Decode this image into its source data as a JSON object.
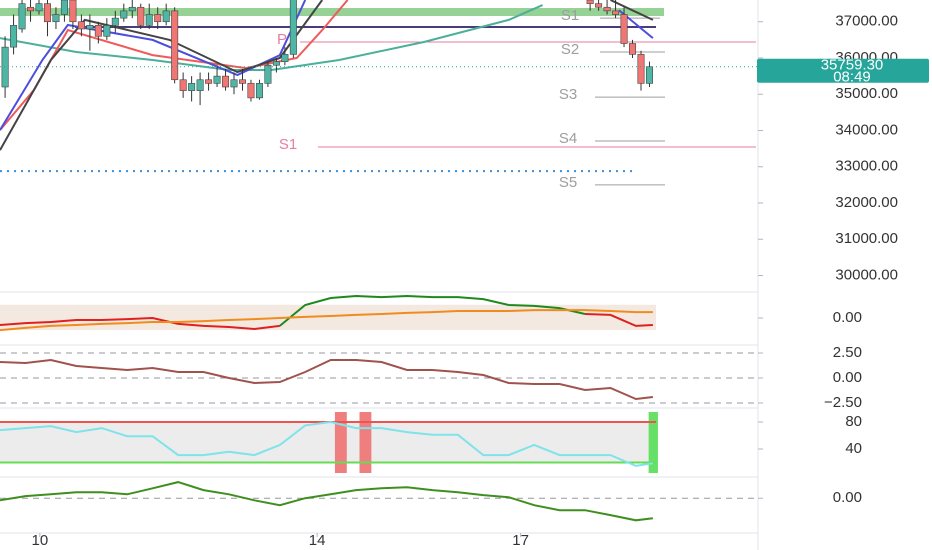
{
  "chart_data": [
    {
      "type": "candlestick",
      "xlim": [
        0,
        89.4
      ],
      "ylim": [
        29600,
        37600
      ],
      "xticks": [
        {
          "value": 4.7,
          "label": "10"
        },
        {
          "value": 37.4,
          "label": "14"
        },
        {
          "value": 61.4,
          "label": "17"
        }
      ],
      "yticks": [
        {
          "value": 37000,
          "label": "37000.00"
        },
        {
          "value": 36000,
          "label": "36000.00"
        },
        {
          "value": 35000,
          "label": "35000.00"
        },
        {
          "value": 34000,
          "label": "34000.00"
        },
        {
          "value": 33000,
          "label": "33000.00"
        },
        {
          "value": 32000,
          "label": "32000.00"
        },
        {
          "value": 31000,
          "label": "31000.00"
        },
        {
          "value": 30000,
          "label": "30000.00"
        }
      ],
      "up_color": "#4db6a4",
      "down_color": "#ef7673",
      "x": [
        0.6,
        1.6,
        2.6,
        3.6,
        4.6,
        5.6,
        6.6,
        7.6,
        8.6,
        9.6,
        10.6,
        11.6,
        12.6,
        13.6,
        14.6,
        15.6,
        16.6,
        17.6,
        18.6,
        19.6,
        20.6,
        21.6,
        22.6,
        23.6,
        24.6,
        25.6,
        26.6,
        27.6,
        28.6,
        29.6,
        30.6,
        31.6,
        32.6,
        33.6,
        34.6,
        69.6,
        70.6,
        71.6,
        72.6,
        73.6,
        74.6,
        75.6,
        76.6
      ],
      "open": [
        35200,
        36300,
        36800,
        37400,
        37300,
        37500,
        37000,
        37200,
        37600,
        37000,
        36800,
        36900,
        36600,
        36900,
        37100,
        37300,
        37400,
        36900,
        37200,
        37000,
        37300,
        35400,
        35100,
        35100,
        35400,
        35300,
        35500,
        35200,
        35400,
        35300,
        34900,
        35300,
        35800,
        35900,
        36100,
        37600,
        37500,
        37400,
        37300,
        37200,
        36400,
        36100,
        35300
      ],
      "high": [
        36600,
        37200,
        37700,
        37700,
        37700,
        37600,
        37400,
        37800,
        37800,
        37200,
        37200,
        37000,
        37100,
        37300,
        37500,
        37600,
        37500,
        37500,
        37400,
        37500,
        37400,
        35600,
        35500,
        35600,
        35600,
        35800,
        35700,
        35600,
        35700,
        35400,
        35400,
        35900,
        36000,
        36300,
        37800,
        37700,
        37700,
        37700,
        37600,
        37400,
        36500,
        36200,
        35900
      ],
      "low": [
        34900,
        36100,
        36700,
        37000,
        37200,
        36600,
        36800,
        37000,
        36800,
        36600,
        36200,
        36400,
        36500,
        36700,
        37000,
        37100,
        36800,
        36800,
        36800,
        36900,
        35300,
        34900,
        34800,
        34700,
        35100,
        35200,
        35100,
        35000,
        35100,
        34800,
        34850,
        35200,
        35600,
        35800,
        36000,
        37300,
        37300,
        37200,
        37100,
        36300,
        36000,
        35100,
        35200
      ],
      "close": [
        36300,
        36900,
        37500,
        37300,
        37500,
        37000,
        37200,
        37600,
        37000,
        36800,
        36900,
        36600,
        36900,
        37100,
        37300,
        37400,
        36900,
        37200,
        37000,
        37300,
        35400,
        35100,
        35300,
        35400,
        35300,
        35500,
        35200,
        35400,
        35300,
        34900,
        35300,
        35800,
        35900,
        36100,
        37700,
        37500,
        37400,
        37300,
        37200,
        36400,
        36100,
        35300,
        35759.3
      ],
      "lines": [
        {
          "color": "#4caf9a",
          "x": [
            0,
            9,
            18,
            27,
            32,
            40,
            50,
            60,
            64
          ],
          "values": [
            36550,
            36165,
            35945,
            35670,
            35670,
            35945,
            36440,
            37050,
            37460
          ]
        },
        {
          "color": "#f05a5a",
          "x": [
            0,
            4,
            8,
            18,
            29,
            35,
            38,
            41
          ],
          "values": [
            34010,
            35117,
            36770,
            36080,
            35720,
            36000,
            36770,
            37600
          ]
        },
        {
          "color": "#4b4fdc",
          "x": [
            0,
            5,
            8,
            18,
            28,
            33,
            36,
            null,
            73,
            77
          ],
          "values": [
            34010,
            35945,
            36910,
            36500,
            35530,
            36080,
            37600,
            null,
            37320,
            36550
          ]
        },
        {
          "color": "#444444",
          "x": [
            0,
            6,
            10,
            20,
            28,
            33,
            38,
            null,
            72,
            77
          ],
          "values": [
            33460,
            35945,
            37050,
            36500,
            35610,
            36000,
            37600,
            null,
            37600,
            37050
          ]
        }
      ],
      "hlines": [
        {
          "value": 37270,
          "color": "#7cc67c",
          "style": "band"
        },
        {
          "value": 36855,
          "color": "#4a3c7a",
          "style": "solid"
        },
        {
          "value": 32880,
          "color": "#3d8fd6",
          "style": "dotted"
        }
      ],
      "levels": [
        {
          "label": "S1",
          "value": 37100,
          "color": "#9e9e9e"
        },
        {
          "label": "P",
          "value": 36440,
          "color": "#e57fa0"
        },
        {
          "label": "S2",
          "value": 36165,
          "color": "#9e9e9e"
        },
        {
          "label": "S3",
          "value": 34920,
          "color": "#9e9e9e"
        },
        {
          "label": "S4",
          "value": 33710,
          "color": "#9e9e9e"
        },
        {
          "label": "S1",
          "value": 33545,
          "color": "#e57fa0"
        },
        {
          "label": "S5",
          "value": 32500,
          "color": "#9e9e9e"
        }
      ],
      "last_price": {
        "value": 35759.3,
        "label": "35759.30"
      },
      "countdown": "08:49",
      "badge_color": "#26a69a"
    },
    {
      "type": "line",
      "ylim": [
        -1,
        1
      ],
      "yticks": [
        {
          "value": 0,
          "label": "0.00"
        }
      ],
      "band": [
        -0.55,
        0.6
      ],
      "band_color": "#f3e9e0",
      "x": [
        0,
        3,
        6,
        9,
        12,
        15,
        18,
        21,
        24,
        27,
        30,
        33,
        36,
        39,
        42,
        45,
        48,
        51,
        54,
        57,
        60,
        63,
        66,
        69,
        72,
        75,
        77
      ],
      "series": [
        {
          "color": "#e02020",
          "values": [
            -0.32,
            -0.23,
            -0.18,
            -0.09,
            -0.09,
            -0.05,
            0,
            -0.27,
            -0.36,
            -0.41,
            -0.5,
            -0.36,
            null,
            null,
            null,
            null,
            null,
            null,
            null,
            null,
            null,
            null,
            null,
            0.18,
            0.14,
            -0.36,
            -0.32
          ]
        },
        {
          "color": "#1e8a1e",
          "values": [
            null,
            null,
            null,
            null,
            null,
            null,
            null,
            null,
            null,
            null,
            null,
            -0.36,
            0.59,
            0.91,
            1.0,
            0.95,
            1.0,
            0.95,
            0.95,
            0.86,
            0.59,
            0.55,
            0.45,
            0.18,
            null,
            null,
            null
          ]
        },
        {
          "color": "#f08c1e",
          "values": [
            -0.55,
            -0.45,
            -0.36,
            -0.32,
            -0.27,
            -0.23,
            -0.18,
            -0.18,
            -0.14,
            -0.09,
            -0.05,
            0,
            0.05,
            0.09,
            0.14,
            0.18,
            0.23,
            0.27,
            0.32,
            0.32,
            0.32,
            0.36,
            0.36,
            0.36,
            0.32,
            0.27,
            0.27
          ]
        }
      ]
    },
    {
      "type": "line",
      "ylim": [
        -2.8,
        3.0
      ],
      "grid": true,
      "yticks": [
        {
          "value": 2.5,
          "label": "2.50"
        },
        {
          "value": 0,
          "label": "0.00"
        },
        {
          "value": -2.5,
          "label": "−2.50"
        }
      ],
      "x": [
        0,
        3,
        6,
        9,
        12,
        15,
        18,
        21,
        24,
        27,
        30,
        33,
        36,
        39,
        42,
        45,
        48,
        51,
        54,
        57,
        60,
        63,
        66,
        69,
        72,
        75,
        77
      ],
      "series": [
        {
          "color": "#a0524d",
          "values": [
            1.6,
            1.5,
            1.8,
            1.2,
            1.0,
            0.8,
            1.0,
            0.6,
            0.6,
            0,
            -0.5,
            -0.4,
            0.6,
            1.8,
            1.8,
            1.6,
            0.8,
            0.8,
            0.6,
            0.3,
            -0.5,
            -0.6,
            -0.6,
            -1.2,
            -1.0,
            -2.1,
            -1.9
          ]
        }
      ]
    },
    {
      "type": "line",
      "ylim": [
        1.5,
        97.8
      ],
      "yticks": [
        80,
        40
      ],
      "band": [
        20,
        80
      ],
      "band_color": "#ececec",
      "hlines": [
        {
          "value": 80,
          "color": "#ef5350",
          "style": "solid"
        },
        {
          "value": 20,
          "color": "#66dd55",
          "style": "solid"
        }
      ],
      "zones": [
        {
          "x": [
            39.5,
            40.9
          ],
          "color": "#ef7f7f"
        },
        {
          "x": [
            42.4,
            43.8
          ],
          "color": "#ef7f7f"
        },
        {
          "x": [
            76.5,
            77.6
          ],
          "color": "#66e066"
        }
      ],
      "x": [
        0,
        3,
        6,
        9,
        12,
        15,
        18,
        21,
        24,
        27,
        30,
        33,
        36,
        39,
        42,
        45,
        48,
        51,
        54,
        57,
        60,
        63,
        66,
        69,
        72,
        75,
        77
      ],
      "series": [
        {
          "color": "#7fe3ea",
          "values": [
            68,
            71,
            74,
            65,
            71,
            59,
            59,
            31,
            31,
            36,
            31,
            46,
            75,
            80,
            71,
            71,
            65,
            61,
            61,
            31,
            31,
            46,
            31,
            31,
            31,
            15,
            19
          ]
        }
      ]
    },
    {
      "type": "line",
      "ylim": [
        -1.3,
        0.7
      ],
      "grid": true,
      "yticks": [
        {
          "value": 0,
          "label": "0.00"
        }
      ],
      "x": [
        0,
        3,
        6,
        9,
        12,
        15,
        18,
        21,
        24,
        27,
        30,
        33,
        36,
        39,
        42,
        45,
        48,
        51,
        54,
        57,
        60,
        63,
        66,
        69,
        72,
        75,
        77
      ],
      "series": [
        {
          "color": "#3f8f1f",
          "values": [
            -0.08,
            0.08,
            0.15,
            0.23,
            0.23,
            0.15,
            0.38,
            0.62,
            0.31,
            0.15,
            -0.08,
            -0.27,
            0,
            0.15,
            0.31,
            0.38,
            0.42,
            0.31,
            0.23,
            0.12,
            0.04,
            -0.27,
            -0.46,
            -0.46,
            -0.65,
            -0.85,
            -0.77
          ]
        }
      ]
    }
  ]
}
